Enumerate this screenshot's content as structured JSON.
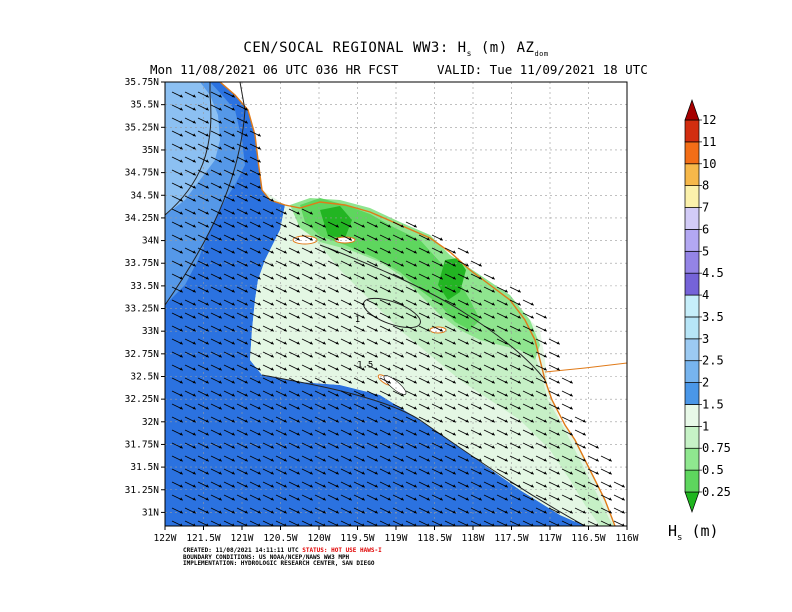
{
  "title": {
    "line1": "CEN/SOCAL REGIONAL WW3: Hs (m) AZdom",
    "line1_main": "CEN/SOCAL REGIONAL WW3: H",
    "line1_sub": "s",
    "line1_rest": " (m) AZ",
    "line1_dom": "dom",
    "line2_left": "Mon 11/08/2021 06 UTC 036 HR FCST",
    "line2_right": "VALID: Tue 11/09/2021 18 UTC"
  },
  "map": {
    "lon_ticks": [
      "122W",
      "121.5W",
      "121W",
      "120.5W",
      "120W",
      "119.5W",
      "119W",
      "118.5W",
      "118W",
      "117.5W",
      "117W",
      "116.5W",
      "116W"
    ],
    "lat_ticks": [
      "35.75N",
      "35.5N",
      "35.25N",
      "35N",
      "34.75N",
      "34.5N",
      "34.25N",
      "34N",
      "33.75N",
      "33.5N",
      "33.25N",
      "33N",
      "32.75N",
      "32.5N",
      "32.25N",
      "32N",
      "31.75N",
      "31.5N",
      "31.25N",
      "31N"
    ],
    "lon_range": [
      -122,
      -116
    ],
    "lat_range": [
      30.85,
      35.75
    ],
    "contour_labels": [
      {
        "text": "1",
        "lon": -119.5,
        "lat": 33.1
      },
      {
        "text": "1.5",
        "lon": -119.4,
        "lat": 32.6
      }
    ]
  },
  "colorbar": {
    "label_main": "H",
    "label_sub": "s",
    "label_rest": " (m)",
    "levels": [
      "0.25",
      "0.5",
      "0.75",
      "1",
      "1.5",
      "2",
      "2.5",
      "3",
      "3.5",
      "4",
      "4.5",
      "5",
      "6",
      "7",
      "8",
      "10",
      "11",
      "12"
    ],
    "colors": [
      "#1fb51f",
      "#5ed65e",
      "#8fe78f",
      "#c6f2c6",
      "#e8f9e8",
      "#4a97e8",
      "#77b4ee",
      "#9ccaf2",
      "#b7e5f7",
      "#c6eefa",
      "#7563d8",
      "#9484e6",
      "#b3a8f2",
      "#d2cbf7",
      "#fbf1ab",
      "#f6b84a",
      "#f36e17",
      "#d22e10",
      "#a60000"
    ]
  },
  "footer": {
    "created_prefix": "CREATED: 11/08/2021 14:11:11 UTC",
    "status": "STATUS: HOT USE HAWS-I",
    "line2": "BOUNDARY CONDITIONS: US NOAA/NCEP/NAWS WW3 MPH",
    "line3": "IMPLEMENTATION: HYDROLOGIC RESEARCH CENTER, SAN DIEGO"
  }
}
